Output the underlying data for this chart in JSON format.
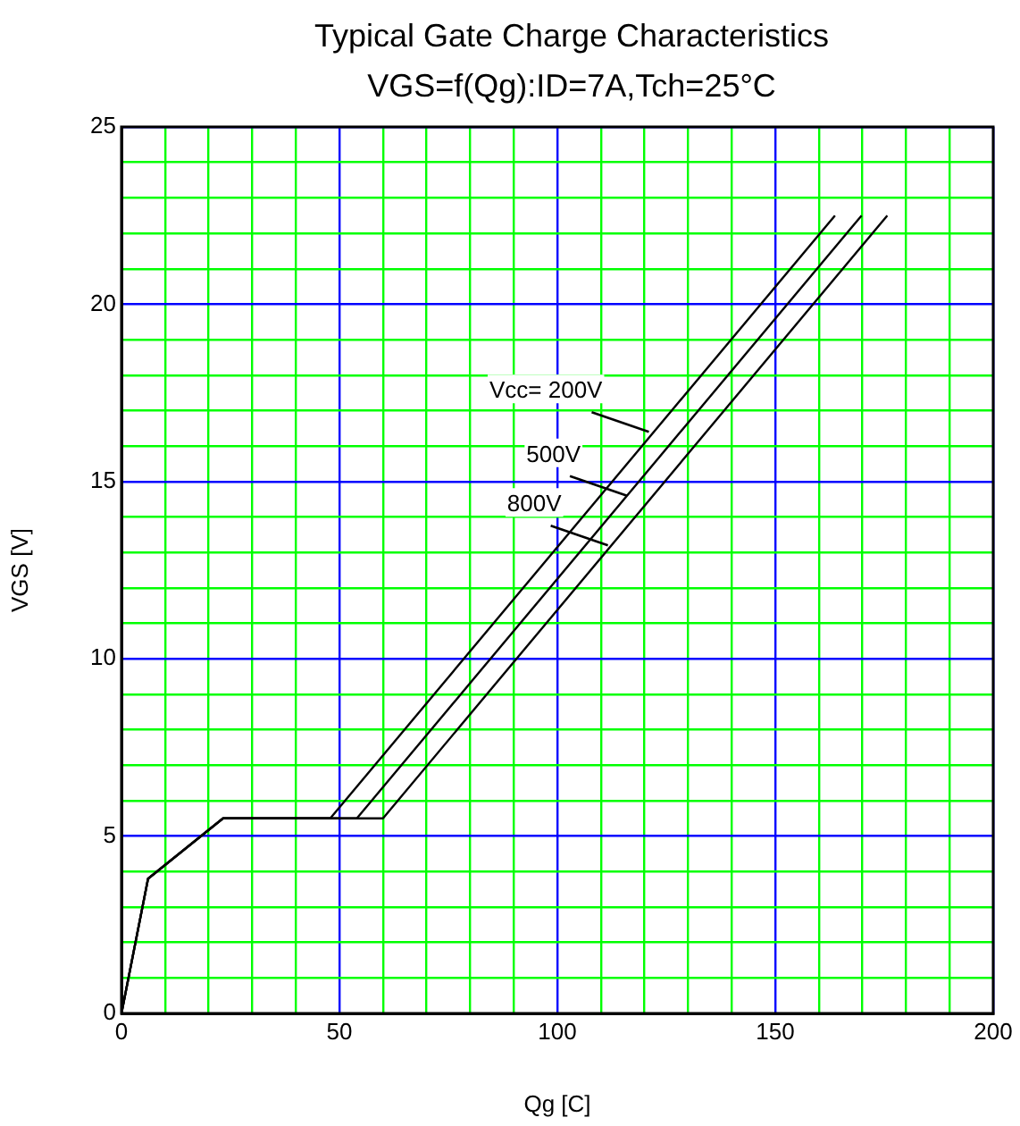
{
  "chart_data": {
    "type": "line",
    "title": "Typical Gate Charge Characteristics",
    "subtitle": "VGS=f(Qg):ID=7A,Tch=25°C",
    "xlabel": "Qg [C]",
    "ylabel": "VGS [V]",
    "series": [
      {
        "color": "#000000",
        "x": [
          0,
          6.1,
          23.3,
          47.9,
          163.7
        ],
        "values": [
          0,
          3.8,
          5.5,
          5.5,
          22.5
        ]
      },
      {
        "color": "#000000",
        "x": [
          0,
          6.1,
          23.3,
          54,
          169.8
        ],
        "values": [
          0,
          3.8,
          5.5,
          5.5,
          22.5
        ]
      },
      {
        "color": "#000000",
        "x": [
          0,
          6.1,
          23.3,
          60,
          175.7
        ],
        "values": [
          0,
          3.8,
          5.5,
          5.5,
          22.5
        ]
      }
    ],
    "annotations": [
      {
        "text": "Vcc= 200V",
        "x": 121,
        "y": 16.4
      },
      {
        "text": "500V",
        "x": 116,
        "y": 14.6
      },
      {
        "text": "800V",
        "x": 111.6,
        "y": 13.2
      }
    ],
    "xlim": [
      0,
      200
    ],
    "xticks": [
      0,
      {
        "value": 10,
        "label": null
      },
      {
        "value": 20,
        "label": null
      },
      {
        "value": 30,
        "label": null
      },
      {
        "value": 40,
        "label": null
      },
      50,
      {
        "value": 60,
        "label": null
      },
      {
        "value": 70,
        "label": null
      },
      {
        "value": 80,
        "label": null
      },
      {
        "value": 90,
        "label": null
      },
      100,
      {
        "value": 110,
        "label": null
      },
      {
        "value": 120,
        "label": null
      },
      {
        "value": 130,
        "label": null
      },
      {
        "value": 140,
        "label": null
      },
      150,
      {
        "value": 160,
        "label": null
      },
      {
        "value": 170,
        "label": null
      },
      {
        "value": 180,
        "label": null
      },
      {
        "value": 190,
        "label": null
      },
      200
    ],
    "ylim": [
      0,
      25
    ],
    "yticks": [
      0,
      {
        "value": 1,
        "label": null
      },
      {
        "value": 2,
        "label": null
      },
      {
        "value": 3,
        "label": null
      },
      {
        "value": 4,
        "label": null
      },
      5,
      {
        "value": 6,
        "label": null
      },
      {
        "value": 7,
        "label": null
      },
      {
        "value": 8,
        "label": null
      },
      {
        "value": 9,
        "label": null
      },
      10,
      {
        "value": 11,
        "label": null
      },
      {
        "value": 12,
        "label": null
      },
      {
        "value": 13,
        "label": null
      },
      {
        "value": 14,
        "label": null
      },
      15,
      {
        "value": 16,
        "label": null
      },
      {
        "value": 17,
        "label": null
      },
      {
        "value": 18,
        "label": null
      },
      {
        "value": 19,
        "label": null
      },
      20,
      {
        "value": 21,
        "label": null
      },
      {
        "value": 22,
        "label": null
      },
      {
        "value": 23,
        "label": null
      },
      {
        "value": 24,
        "label": null
      },
      25
    ],
    "grid": true,
    "legend": false,
    "marker": "none",
    "line_style": "solid"
  }
}
